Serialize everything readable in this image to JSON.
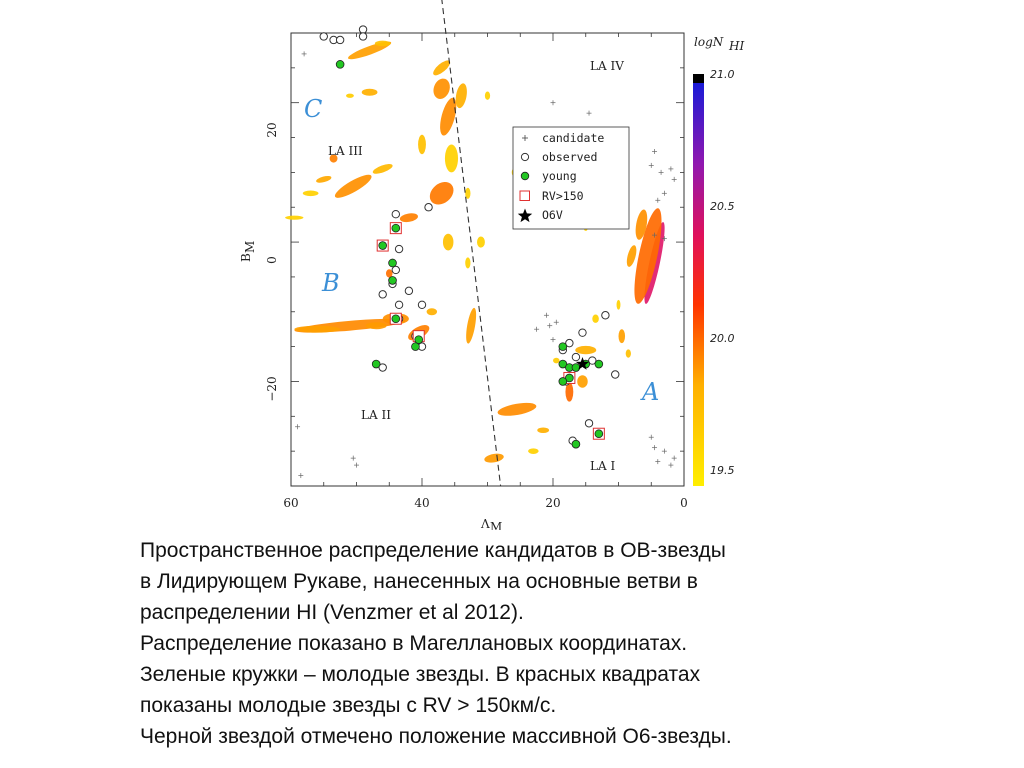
{
  "chart_data": {
    "type": "scatter",
    "xlabel": "Λ",
    "xlabel_sub": "M",
    "ylabel": "B",
    "ylabel_sub": "M",
    "xlim": [
      60,
      0
    ],
    "ylim": [
      -35,
      30
    ],
    "x_ticks": [
      "60",
      "40",
      "20",
      "0"
    ],
    "y_ticks": [
      "20",
      "0",
      "−20"
    ],
    "regions": [
      "LA IV",
      "LA III",
      "LA II",
      "LA I"
    ],
    "stream_labels": [
      "C",
      "B",
      "A"
    ],
    "legend": {
      "position": "upper-right",
      "entries": [
        "candidate",
        "observed",
        "young",
        "RV>150",
        "O6V"
      ]
    },
    "colorbar": {
      "title": "logN",
      "title_sub": "HI",
      "ticks": [
        "21.0",
        "20.5",
        "20.0",
        "19.5"
      ],
      "colors": {
        "low": "#ffee00",
        "mid": "#ff4400",
        "high": "#c0148a",
        "top": "#1a1ad6",
        "cap": "#000000"
      }
    },
    "series": [
      {
        "name": "observed",
        "points": [
          [
            55,
            29.5
          ],
          [
            53.5,
            29
          ],
          [
            52.5,
            29
          ],
          [
            49,
            30.5
          ],
          [
            49,
            29.5
          ],
          [
            39,
            5
          ],
          [
            44,
            4
          ],
          [
            43.5,
            -1
          ],
          [
            44,
            -4
          ],
          [
            44.5,
            -6
          ],
          [
            46,
            -7.5
          ],
          [
            42,
            -7
          ],
          [
            43.5,
            -9
          ],
          [
            40,
            -9
          ],
          [
            43.5,
            -11
          ],
          [
            46,
            -18
          ],
          [
            40,
            -15
          ],
          [
            41,
            -13.5
          ],
          [
            17.5,
            -14.5
          ],
          [
            18.5,
            -15.5
          ],
          [
            16.5,
            -16.5
          ],
          [
            15.5,
            -13
          ],
          [
            12,
            -10.5
          ],
          [
            14,
            -17
          ],
          [
            10.5,
            -19
          ],
          [
            17.5,
            -19.5
          ],
          [
            18,
            -20
          ],
          [
            14.5,
            -26
          ],
          [
            17,
            -28.5
          ],
          [
            16.5,
            -29
          ]
        ]
      },
      {
        "name": "young",
        "points": [
          [
            52.5,
            25.5
          ],
          [
            44,
            2
          ],
          [
            46,
            -0.5
          ],
          [
            44.5,
            -3
          ],
          [
            44.5,
            -5.5
          ],
          [
            44,
            -11
          ],
          [
            41,
            -15
          ],
          [
            40.5,
            -14
          ],
          [
            47,
            -17.5
          ],
          [
            18.5,
            -15
          ],
          [
            18.5,
            -17.5
          ],
          [
            17.5,
            -18
          ],
          [
            16.5,
            -18
          ],
          [
            15,
            -17.5
          ],
          [
            13,
            -17.5
          ],
          [
            17.5,
            -19.5
          ],
          [
            18.5,
            -20
          ],
          [
            16.5,
            -29
          ],
          [
            13,
            -27.5
          ]
        ]
      },
      {
        "name": "RV>150",
        "points": [
          [
            44,
            2
          ],
          [
            46,
            -0.5
          ],
          [
            44,
            -11
          ],
          [
            40.5,
            -13.5
          ],
          [
            17.5,
            -19.5
          ],
          [
            13,
            -27.5
          ]
        ]
      },
      {
        "name": "O6V",
        "points": [
          [
            15.5,
            -17.5
          ]
        ]
      },
      {
        "name": "candidate",
        "points": [
          [
            58,
            27
          ],
          [
            59,
            -26.5
          ],
          [
            58.5,
            -33.5
          ],
          [
            50.5,
            -31
          ],
          [
            50,
            -32
          ],
          [
            4,
            6
          ],
          [
            3,
            7
          ],
          [
            2,
            10.5
          ],
          [
            1.5,
            9
          ],
          [
            4.5,
            13
          ],
          [
            5,
            11
          ],
          [
            3.5,
            10
          ],
          [
            3,
            0.5
          ],
          [
            4.5,
            1
          ],
          [
            5,
            -28
          ],
          [
            4.5,
            -29.5
          ],
          [
            3,
            -30
          ],
          [
            4,
            -31.5
          ],
          [
            1.5,
            -31
          ],
          [
            2,
            -32
          ],
          [
            18,
            -17.5
          ],
          [
            19.5,
            -11.5
          ],
          [
            20.5,
            -12
          ],
          [
            21,
            -10.5
          ],
          [
            20,
            -14
          ],
          [
            22.5,
            -12.5
          ],
          [
            17,
            4.5
          ],
          [
            14.5,
            18.5
          ],
          [
            20,
            20
          ]
        ]
      }
    ]
  },
  "caption": {
    "lines": [
      "Пространственное распределение кандидатов в ОВ-звезды",
      "в Лидирующем Рукаве, нанесенных на основные ветви в",
      "распределении HI (Venzmer et al 2012).",
      "Распределение показано в Магеллановых координатах.",
      "Зеленые кружки – молодые звезды. В красных квадратах",
      "показаны молодые звезды с RV > 150км/с.",
      "Черной звездой отмечено положение массивной О6-звезды."
    ]
  }
}
